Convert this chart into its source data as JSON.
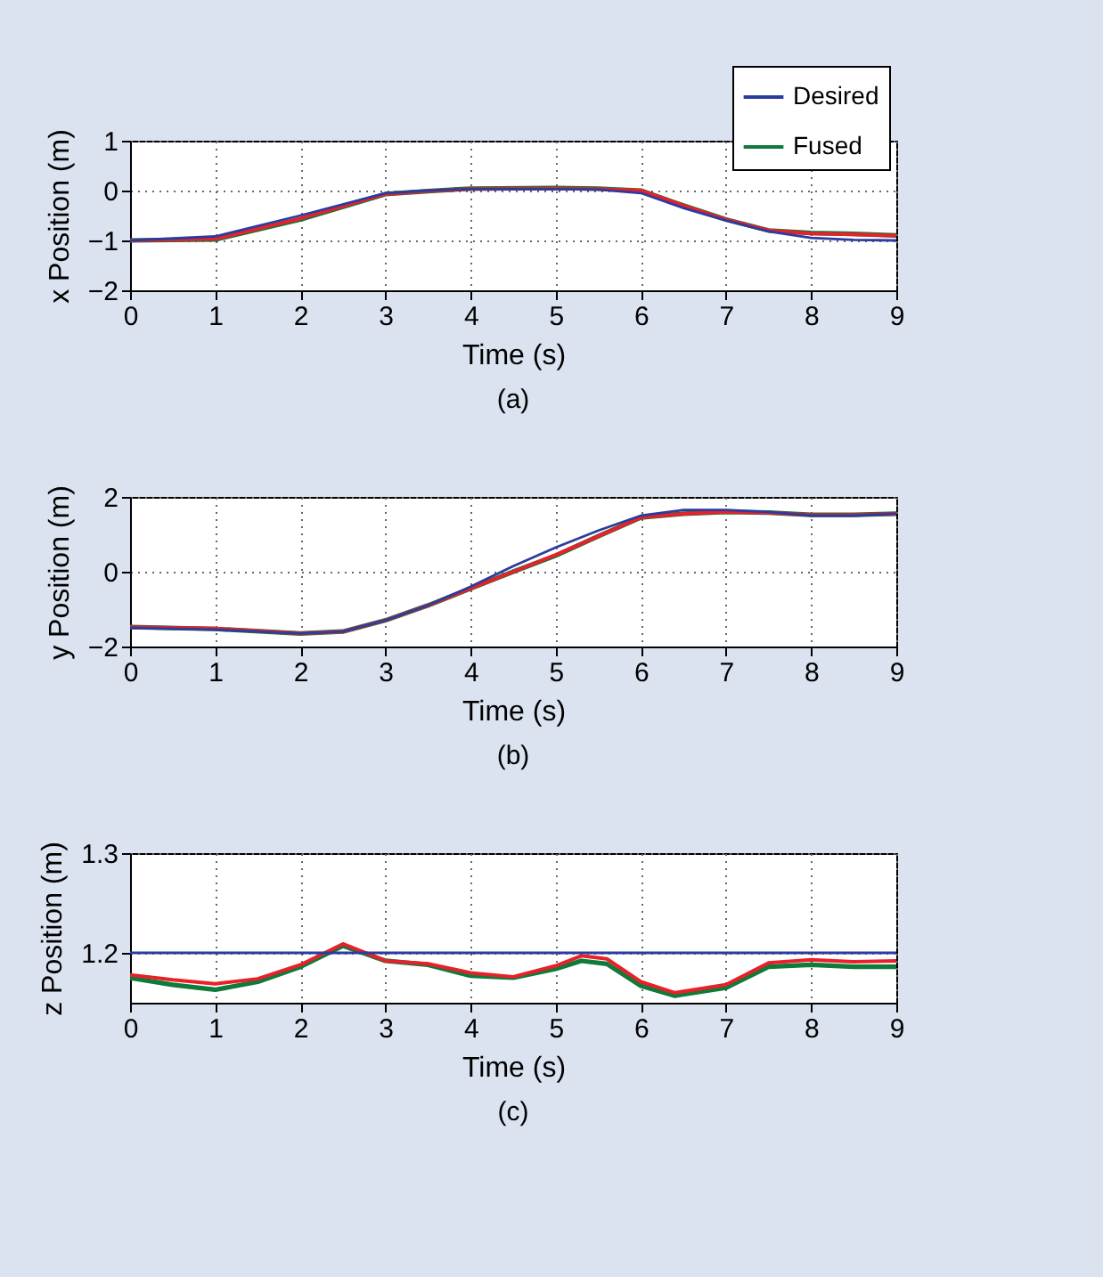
{
  "chart_data": [
    {
      "type": "line",
      "xlabel": "Time (s)",
      "ylabel": "x Position (m)",
      "annotations": [
        "(a)"
      ],
      "xlim": [
        0,
        9
      ],
      "ylim": [
        -2,
        1
      ],
      "xticks": [
        0,
        1,
        2,
        3,
        4,
        5,
        6,
        7,
        8,
        9
      ],
      "yticks": [
        -2,
        -1,
        0,
        1
      ],
      "grid": true,
      "legend": "top right",
      "x": [
        0,
        1,
        2,
        3,
        3.5,
        4,
        5,
        5.5,
        6,
        6.5,
        7,
        7.5,
        8,
        8.5,
        9
      ],
      "series": [
        {
          "name": "Desired",
          "color": "#2b3c9e",
          "values": [
            -1,
            -0.92,
            -0.5,
            -0.05,
            0,
            0.03,
            0.03,
            0.02,
            -0.05,
            -0.35,
            -0.6,
            -0.82,
            -0.95,
            -0.99,
            -1
          ]
        },
        {
          "color": "#e8202a",
          "values": [
            -1,
            -0.97,
            -0.56,
            -0.07,
            -0.01,
            0.03,
            0.04,
            0.03,
            0,
            -0.3,
            -0.58,
            -0.8,
            -0.86,
            -0.88,
            -0.9
          ]
        },
        {
          "name": "Fused",
          "color": "#0f7a3a",
          "values": [
            -1,
            -0.98,
            -0.58,
            -0.07,
            -0.01,
            0.04,
            0.05,
            0.04,
            0,
            -0.3,
            -0.58,
            -0.8,
            -0.85,
            -0.87,
            -0.9
          ]
        }
      ]
    },
    {
      "type": "line",
      "xlabel": "Time (s)",
      "ylabel": "y Position (m)",
      "annotations": [
        "(b)"
      ],
      "xlim": [
        0,
        9
      ],
      "ylim": [
        -2,
        2
      ],
      "xticks": [
        0,
        1,
        2,
        3,
        4,
        5,
        6,
        7,
        8,
        9
      ],
      "yticks": [
        -2,
        0,
        2
      ],
      "grid": true,
      "x": [
        0,
        1,
        2,
        2.5,
        3,
        3.5,
        4,
        4.5,
        5,
        5.5,
        6,
        6.5,
        7,
        7.5,
        8,
        8.5,
        9
      ],
      "series": [
        {
          "color": "#2b3c9e",
          "values": [
            -1.5,
            -1.55,
            -1.65,
            -1.6,
            -1.3,
            -0.9,
            -0.4,
            0.15,
            0.65,
            1.1,
            1.5,
            1.65,
            1.65,
            1.6,
            1.5,
            1.5,
            1.55
          ]
        },
        {
          "color": "#e8202a",
          "values": [
            -1.48,
            -1.52,
            -1.65,
            -1.6,
            -1.3,
            -0.9,
            -0.45,
            0,
            0.45,
            0.95,
            1.45,
            1.55,
            1.6,
            1.58,
            1.52,
            1.52,
            1.55
          ]
        },
        {
          "color": "#0f7a3a",
          "values": [
            -1.48,
            -1.53,
            -1.65,
            -1.6,
            -1.3,
            -0.9,
            -0.45,
            0,
            0.43,
            0.95,
            1.45,
            1.55,
            1.6,
            1.58,
            1.52,
            1.52,
            1.55
          ]
        }
      ]
    },
    {
      "type": "line",
      "xlabel": "Time (s)",
      "ylabel": "z Position (m)",
      "annotations": [
        "(c)"
      ],
      "xlim": [
        0,
        9
      ],
      "ylim": [
        1.15,
        1.3
      ],
      "xticks": [
        0,
        1,
        2,
        3,
        4,
        5,
        6,
        7,
        8,
        9
      ],
      "yticks": [
        1.2,
        1.3
      ],
      "grid": true,
      "x": [
        0,
        0.5,
        1,
        1.5,
        2,
        2.5,
        3,
        3.5,
        4,
        4.5,
        5,
        5.3,
        5.6,
        6,
        6.4,
        7,
        7.5,
        8,
        8.5,
        9
      ],
      "series": [
        {
          "color": "#2b3c9e",
          "values": [
            1.2,
            1.2,
            1.2,
            1.2,
            1.2,
            1.2,
            1.2,
            1.2,
            1.2,
            1.2,
            1.2,
            1.2,
            1.2,
            1.2,
            1.2,
            1.2,
            1.2,
            1.2,
            1.2,
            1.2
          ]
        },
        {
          "color": "#e8202a",
          "values": [
            1.178,
            1.173,
            1.169,
            1.174,
            1.188,
            1.209,
            1.192,
            1.189,
            1.18,
            1.176,
            1.187,
            1.197,
            1.194,
            1.171,
            1.16,
            1.168,
            1.19,
            1.193,
            1.191,
            1.192
          ]
        },
        {
          "color": "#0f7a3a",
          "values": [
            1.175,
            1.168,
            1.163,
            1.171,
            1.186,
            1.207,
            1.192,
            1.188,
            1.177,
            1.175,
            1.184,
            1.192,
            1.189,
            1.167,
            1.157,
            1.165,
            1.186,
            1.188,
            1.186,
            1.186
          ]
        }
      ]
    }
  ]
}
